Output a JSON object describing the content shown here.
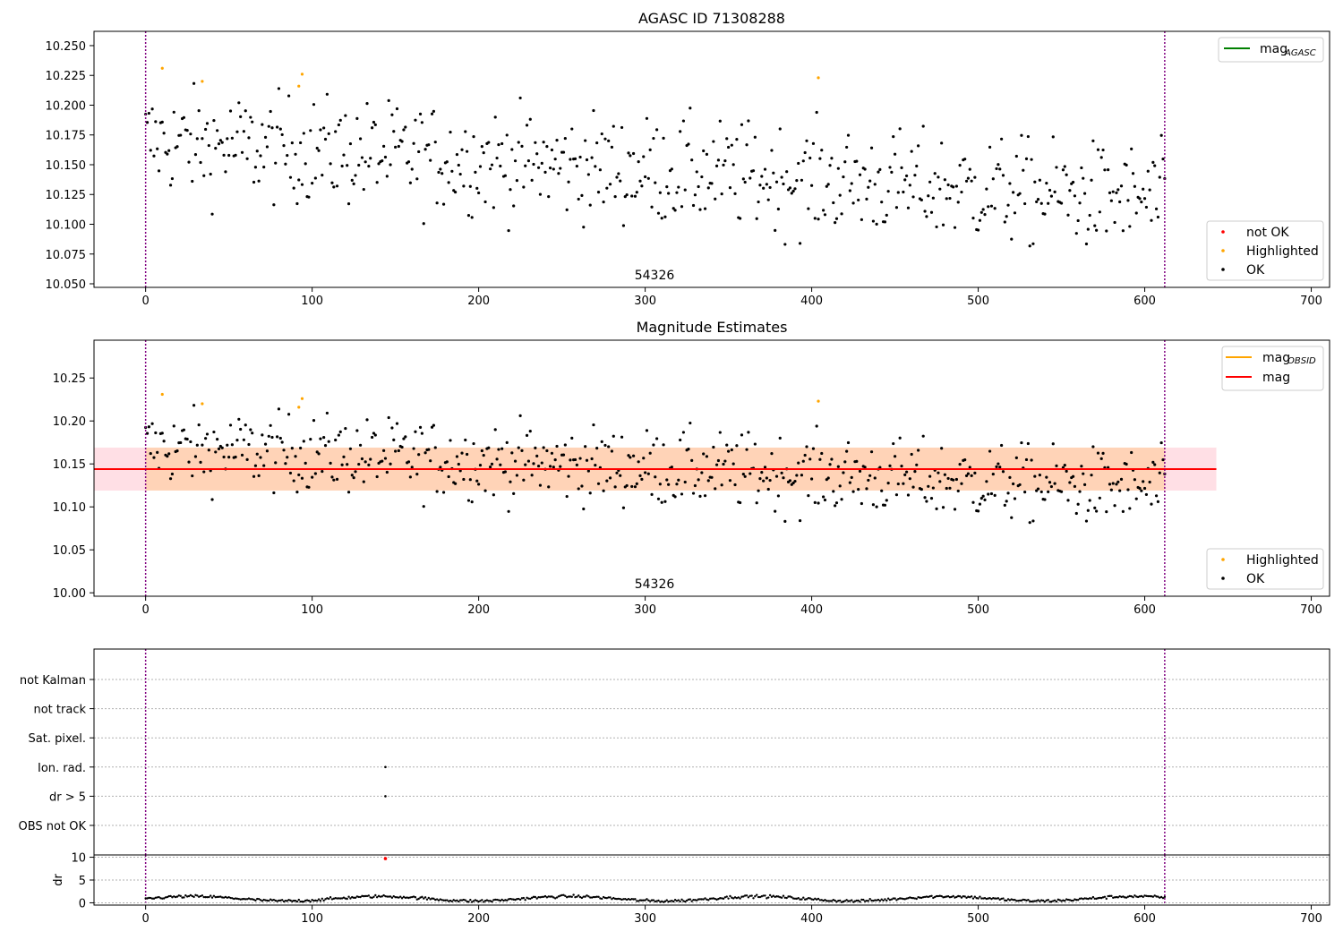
{
  "chart_data": [
    {
      "type": "scatter",
      "title": "AGASC ID 71308288",
      "annotation": "54326",
      "xlim": [
        -31,
        711
      ],
      "ylim": [
        10.047,
        10.262
      ],
      "xticks": [
        0,
        100,
        200,
        300,
        400,
        500,
        600,
        700
      ],
      "yticks": [
        "10.050",
        "10.075",
        "10.100",
        "10.125",
        "10.150",
        "10.175",
        "10.200",
        "10.225",
        "10.250"
      ],
      "vlines": [
        0,
        612
      ],
      "legend_lines": [
        {
          "label": "mag",
          "sub": "AGASC",
          "color": "#008000"
        }
      ],
      "legend_points": [
        {
          "label": "not OK",
          "color": "#ff0000"
        },
        {
          "label": "Highlighted",
          "color": "#ffa500"
        },
        {
          "label": "OK",
          "color": "#000000"
        }
      ],
      "highlighted": [
        [
          10,
          10.231
        ],
        [
          34,
          10.22
        ],
        [
          92,
          10.216
        ],
        [
          94,
          10.226
        ],
        [
          404,
          10.223
        ]
      ],
      "ok_summary": "612 OK points: mag drifts from ~10.170 at x=0 to ~10.120 at x=612, scatter about ±0.03"
    },
    {
      "type": "scatter",
      "title": "Magnitude Estimates",
      "annotation": "54326",
      "xlim": [
        -31,
        711
      ],
      "ylim": [
        9.996,
        10.294
      ],
      "xticks": [
        0,
        100,
        200,
        300,
        400,
        500,
        600,
        700
      ],
      "yticks": [
        "10.00",
        "10.05",
        "10.10",
        "10.15",
        "10.20",
        "10.25"
      ],
      "vlines": [
        0,
        612
      ],
      "mag": 10.144,
      "band_obsid": [
        10.119,
        10.169
      ],
      "band_total": [
        10.119,
        10.169
      ],
      "band_xrange": [
        -31,
        643
      ],
      "legend_lines": [
        {
          "label": "mag",
          "sub": "OBSID",
          "color": "#ffa500"
        },
        {
          "label": "mag",
          "sub": "",
          "color": "#ff0000"
        }
      ],
      "legend_points": [
        {
          "label": "Highlighted",
          "color": "#ffa500"
        },
        {
          "label": "OK",
          "color": "#000000"
        }
      ],
      "highlighted": [
        [
          10,
          10.231
        ],
        [
          34,
          10.22
        ],
        [
          92,
          10.216
        ],
        [
          94,
          10.226
        ],
        [
          404,
          10.223
        ]
      ]
    },
    {
      "type": "scatter",
      "title": "",
      "xlim": [
        -31,
        711
      ],
      "xticks": [
        0,
        100,
        200,
        300,
        400,
        500,
        600,
        700
      ],
      "vlines": [
        0,
        612
      ],
      "flag_labels": [
        "OBS not OK",
        "dr > 5",
        "Ion. rad.",
        "Sat. pixel.",
        "not track",
        "not Kalman"
      ],
      "flag_points": [
        [
          144,
          "dr > 5"
        ],
        [
          144,
          "Ion. rad."
        ]
      ]
    },
    {
      "type": "scatter",
      "title": "",
      "ylabel": "dr",
      "xlim": [
        -31,
        711
      ],
      "ylim": [
        -0.5,
        10.5
      ],
      "xticks": [
        0,
        100,
        200,
        300,
        400,
        500,
        600,
        700
      ],
      "yticks": [
        "0",
        "5",
        "10"
      ],
      "vlines": [
        0,
        612
      ],
      "outlier": [
        144,
        9.7
      ],
      "dr_summary": "dr mostly between 0.2 and 1.8 across x=0..612"
    }
  ]
}
